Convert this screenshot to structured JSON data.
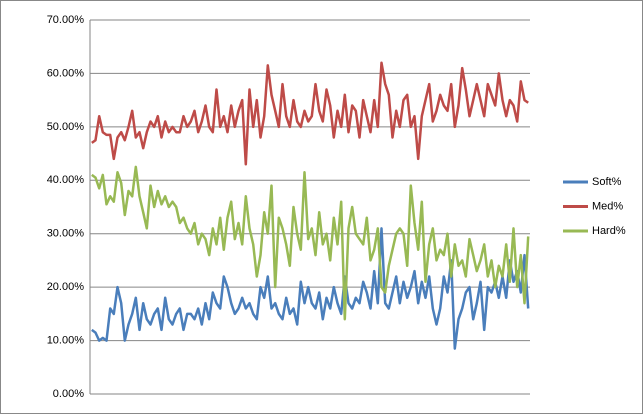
{
  "chart_data": {
    "type": "line",
    "categories": [
      null,
      null,
      null,
      null,
      null,
      null,
      null,
      null,
      null,
      null,
      null,
      null,
      null,
      null,
      null,
      null,
      null,
      null,
      null,
      null,
      null,
      null,
      null,
      null,
      null,
      null,
      null,
      null,
      null,
      null,
      null,
      null,
      null,
      null,
      null,
      null,
      null,
      null,
      null,
      null,
      null,
      null,
      null,
      null,
      null,
      null,
      null,
      null,
      null,
      null,
      null,
      null,
      null,
      null,
      null,
      null,
      null,
      null,
      null,
      null,
      null,
      null,
      null,
      null,
      null,
      null,
      null,
      null,
      null,
      null,
      null,
      null,
      null,
      null,
      null,
      null,
      null,
      null,
      null,
      null,
      null,
      null,
      null,
      null,
      null,
      null,
      null,
      null,
      null,
      null,
      null,
      null,
      null,
      null,
      null,
      null,
      null,
      null,
      null,
      null,
      null,
      null,
      null,
      null,
      null,
      null,
      null,
      null,
      null,
      null,
      null,
      null,
      null,
      null,
      null,
      null,
      null,
      null,
      null,
      null
    ],
    "series": [
      {
        "name": "Soft%",
        "color": "#4a7ebb",
        "values": [
          12,
          11.5,
          10,
          10.5,
          10,
          16,
          15,
          20,
          17,
          10,
          13,
          15,
          18,
          12,
          17,
          14,
          13,
          15,
          16,
          12,
          18,
          14,
          13,
          15,
          16,
          12,
          15,
          15,
          14,
          16,
          13,
          17,
          14,
          19,
          17,
          16,
          22,
          20,
          17,
          15,
          16,
          18,
          16,
          17,
          15,
          14,
          20,
          18,
          22,
          16,
          17,
          15,
          14,
          18,
          15,
          16,
          13,
          21,
          17,
          20,
          17,
          16,
          19,
          14,
          18,
          16,
          20,
          17,
          15,
          22,
          17,
          16,
          18,
          17,
          21,
          19,
          16,
          23,
          17,
          31,
          17,
          16,
          19,
          22,
          17,
          21,
          18,
          20,
          23,
          17,
          21,
          18,
          22,
          16,
          13,
          16,
          22,
          19,
          25,
          8.5,
          14,
          16,
          19,
          20,
          14,
          17,
          21,
          12,
          20,
          19,
          21,
          18,
          22,
          18,
          25,
          21,
          23,
          19,
          26,
          16
        ]
      },
      {
        "name": "Med%",
        "color": "#be4b48",
        "values": [
          47,
          47.5,
          52,
          49,
          48.5,
          48.5,
          44,
          48,
          49,
          47.5,
          50,
          53,
          48,
          49,
          46,
          49,
          51,
          50,
          52,
          48,
          51,
          49,
          50,
          49,
          49,
          52,
          50,
          51,
          53,
          49,
          51,
          54,
          50,
          49,
          57,
          50,
          52,
          49,
          54,
          50,
          53,
          55,
          43,
          57,
          50,
          55,
          48,
          52,
          61.5,
          56,
          53,
          50,
          58,
          52,
          50,
          55,
          51,
          50,
          53,
          51,
          52,
          58,
          53,
          51,
          57,
          54,
          48,
          53,
          50,
          56,
          49,
          54,
          53,
          48,
          55,
          52,
          49,
          55,
          50,
          62,
          58,
          56,
          48,
          53,
          50,
          55,
          56,
          50,
          52,
          44,
          52,
          55,
          58,
          51,
          53,
          56,
          54,
          53,
          58,
          50,
          54,
          61,
          57,
          52,
          55,
          58,
          55,
          52,
          58,
          56,
          54,
          60,
          55,
          52,
          55,
          54,
          51,
          58.5,
          55,
          54.5
        ]
      },
      {
        "name": "Hard%",
        "color": "#98b954",
        "values": [
          41,
          40.5,
          38.5,
          41,
          35.5,
          37,
          36,
          41.5,
          39.5,
          33.5,
          38,
          37,
          42.5,
          37,
          34,
          31,
          39,
          35,
          38,
          35.5,
          37,
          35,
          36,
          35,
          32,
          33,
          31,
          30,
          32,
          28,
          30,
          29,
          26,
          31,
          28,
          33,
          27,
          33,
          36,
          29,
          32,
          28,
          37,
          31,
          28,
          22,
          26,
          34,
          30,
          39,
          20,
          33,
          31,
          28,
          24,
          35,
          30,
          27,
          41.5,
          29,
          31,
          26,
          34,
          28,
          30,
          25,
          33,
          28,
          36,
          14,
          31,
          35,
          30,
          29,
          28,
          33,
          25,
          27,
          31,
          20,
          19,
          24,
          27,
          30,
          31,
          30,
          24,
          39,
          32,
          27,
          36,
          21,
          28,
          31,
          25,
          27,
          26,
          30,
          22,
          28,
          24,
          25,
          22,
          29,
          26,
          23,
          25,
          28,
          22,
          25,
          20,
          24,
          22,
          28,
          21,
          31,
          20,
          26,
          17,
          29.5
        ]
      }
    ],
    "ylim": [
      0,
      70
    ],
    "yticks": [
      {
        "value": 0,
        "label": "0.00%"
      },
      {
        "value": 10,
        "label": "10.00%"
      },
      {
        "value": 20,
        "label": "20.00%"
      },
      {
        "value": 30,
        "label": "30.00%"
      },
      {
        "value": 40,
        "label": "40.00%"
      },
      {
        "value": 50,
        "label": "50.00%"
      },
      {
        "value": 60,
        "label": "60.00%"
      },
      {
        "value": 70,
        "label": "70.00%"
      }
    ],
    "grid": true,
    "legend": "right"
  }
}
